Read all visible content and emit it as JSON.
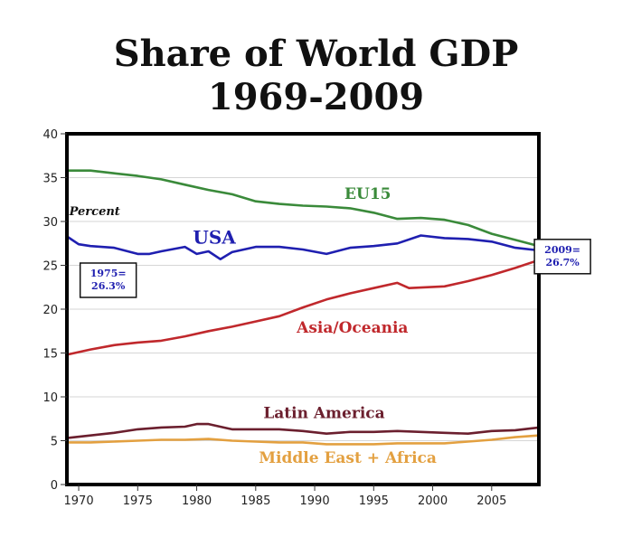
{
  "chart_data": {
    "type": "line",
    "title": "Share of World GDP",
    "subtitle": "1969-2009",
    "ylabel": "Percent",
    "xlim": [
      1969,
      2009
    ],
    "ylim": [
      0,
      40
    ],
    "x_ticks": [
      1970,
      1975,
      1980,
      1985,
      1990,
      1995,
      2000,
      2005
    ],
    "y_ticks": [
      0,
      5,
      10,
      15,
      20,
      25,
      30,
      35,
      40
    ],
    "grid": "horizontal",
    "colors": {
      "EU15": "#3a8a3a",
      "USA": "#1f1fb0",
      "Asia/Oceania": "#c0282c",
      "Latin America": "#6b1f2e",
      "Middle East + Africa": "#e3a040"
    },
    "series": [
      {
        "name": "EU15",
        "x": [
          1969,
          1971,
          1973,
          1975,
          1977,
          1979,
          1981,
          1983,
          1985,
          1987,
          1989,
          1991,
          1993,
          1995,
          1997,
          1999,
          2001,
          2003,
          2005,
          2007,
          2009
        ],
        "y": [
          35.8,
          35.8,
          35.5,
          35.2,
          34.8,
          34.2,
          33.6,
          33.1,
          32.3,
          32.0,
          31.8,
          31.7,
          31.5,
          31.0,
          30.3,
          30.4,
          30.2,
          29.6,
          28.6,
          27.9,
          27.2
        ]
      },
      {
        "name": "USA",
        "x": [
          1969,
          1970,
          1971,
          1973,
          1975,
          1976,
          1977,
          1979,
          1980,
          1981,
          1982,
          1983,
          1985,
          1987,
          1989,
          1991,
          1993,
          1995,
          1997,
          1999,
          2001,
          2003,
          2005,
          2007,
          2009
        ],
        "y": [
          28.3,
          27.4,
          27.2,
          27.0,
          26.3,
          26.3,
          26.6,
          27.1,
          26.3,
          26.6,
          25.7,
          26.5,
          27.1,
          27.1,
          26.8,
          26.3,
          27.0,
          27.2,
          27.5,
          28.4,
          28.1,
          28.0,
          27.7,
          27.0,
          26.7
        ]
      },
      {
        "name": "Asia/Oceania",
        "x": [
          1969,
          1971,
          1973,
          1975,
          1977,
          1979,
          1981,
          1983,
          1985,
          1987,
          1989,
          1991,
          1993,
          1995,
          1997,
          1998,
          2001,
          2003,
          2005,
          2007,
          2009
        ],
        "y": [
          14.8,
          15.4,
          15.9,
          16.2,
          16.4,
          16.9,
          17.5,
          18.0,
          18.6,
          19.2,
          20.2,
          21.1,
          21.8,
          22.4,
          23.0,
          22.4,
          22.6,
          23.2,
          23.9,
          24.7,
          25.6
        ]
      },
      {
        "name": "Latin America",
        "x": [
          1969,
          1971,
          1973,
          1975,
          1977,
          1979,
          1980,
          1981,
          1983,
          1985,
          1987,
          1989,
          1991,
          1993,
          1995,
          1997,
          1999,
          2001,
          2003,
          2005,
          2007,
          2009
        ],
        "y": [
          5.3,
          5.6,
          5.9,
          6.3,
          6.5,
          6.6,
          6.9,
          6.9,
          6.3,
          6.3,
          6.3,
          6.1,
          5.8,
          6.0,
          6.0,
          6.1,
          6.0,
          5.9,
          5.8,
          6.1,
          6.2,
          6.5
        ]
      },
      {
        "name": "Middle East + Africa",
        "x": [
          1969,
          1971,
          1973,
          1975,
          1977,
          1979,
          1981,
          1983,
          1985,
          1987,
          1989,
          1991,
          1993,
          1995,
          1997,
          1999,
          2001,
          2003,
          2005,
          2007,
          2009
        ],
        "y": [
          4.8,
          4.8,
          4.9,
          5.0,
          5.1,
          5.1,
          5.2,
          5.0,
          4.9,
          4.8,
          4.8,
          4.6,
          4.6,
          4.6,
          4.7,
          4.7,
          4.7,
          4.9,
          5.1,
          5.4,
          5.6
        ]
      }
    ],
    "series_labels": [
      {
        "text": "EU15",
        "series": "EU15",
        "x": 1994.5,
        "y": 32.6
      },
      {
        "text": "USA",
        "series": "USA",
        "x": 1981.5,
        "y": 27.5
      },
      {
        "text": "Asia/Oceania",
        "series": "Asia/Oceania",
        "x": 1993.2,
        "y": 17.3
      },
      {
        "text": "Latin America",
        "series": "Latin America",
        "x": 1990.8,
        "y": 7.6
      },
      {
        "text": "Middle East + Africa",
        "series": "Middle East + Africa",
        "x": 1992.8,
        "y": 2.5
      }
    ],
    "annotations": [
      {
        "lines": [
          "1975=",
          "26.3%"
        ],
        "x": 1975,
        "y": 26.3,
        "box_x": 1972.5,
        "box_y": 23.3
      },
      {
        "lines": [
          "2009=",
          "26.7%"
        ],
        "x": 2009,
        "y": 26.7,
        "box_x": 2011.0,
        "box_y": 26.0
      }
    ]
  }
}
